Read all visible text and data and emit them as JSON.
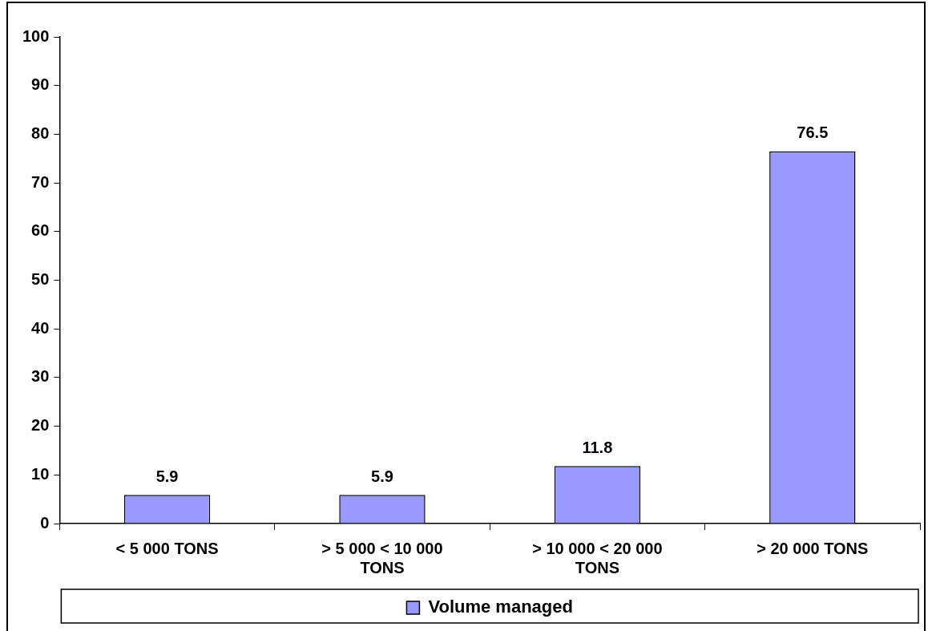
{
  "chart_data": {
    "type": "bar",
    "categories": [
      "< 5 000 TONS",
      "> 5 000 < 10 000 TONS",
      "> 10 000 < 20 000 TONS",
      "> 20 000 TONS"
    ],
    "series": [
      {
        "name": "Volume managed",
        "color": "#9999ff",
        "values": [
          5.9,
          5.9,
          11.8,
          76.5
        ]
      }
    ],
    "ylim": [
      0,
      100
    ],
    "yticks": [
      0,
      10,
      20,
      30,
      40,
      50,
      60,
      70,
      80,
      90,
      100
    ],
    "grid": false,
    "legend": "bottom",
    "data_labels": true
  }
}
